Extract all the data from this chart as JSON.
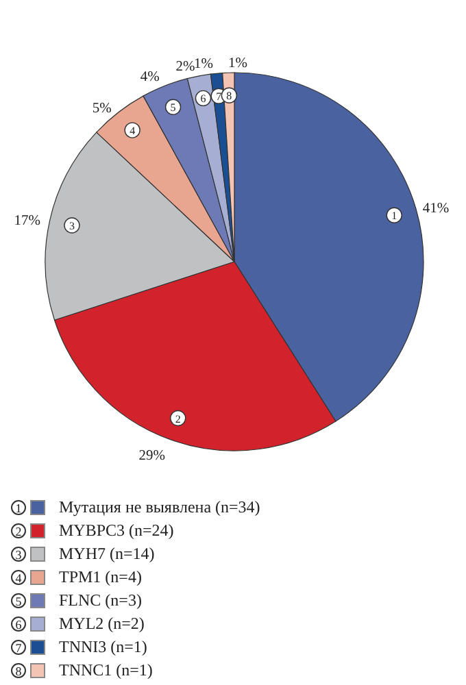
{
  "chart_data": {
    "type": "pie",
    "categories": [
      "Мутация не выявлена (n=34)",
      "MYBPC3 (n=24)",
      "MYH7 (n=14)",
      "TPM1 (n=4)",
      "FLNC (n=3)",
      "MYL2 (n=2)",
      "TNNI3 (n=1)",
      "TNNC1 (n=1)"
    ],
    "values": [
      41,
      29,
      17,
      5,
      4,
      2,
      1,
      1
    ],
    "value_labels": [
      "41%",
      "29%",
      "17%",
      "5%",
      "4%",
      "2%",
      "1%",
      "1%"
    ],
    "annotations": [
      "1",
      "2",
      "3",
      "4",
      "5",
      "6",
      "7",
      "8"
    ],
    "colors": [
      "#4a62a0",
      "#d2232c",
      "#c0c1c3",
      "#e8a590",
      "#6d7ab5",
      "#a7aed4",
      "#1a4f94",
      "#f3c4b4"
    ],
    "legend": "bottom"
  }
}
